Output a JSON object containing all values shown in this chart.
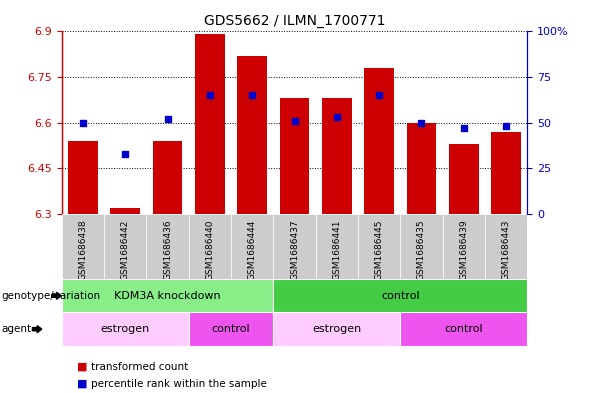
{
  "title": "GDS5662 / ILMN_1700771",
  "samples": [
    "GSM1686438",
    "GSM1686442",
    "GSM1686436",
    "GSM1686440",
    "GSM1686444",
    "GSM1686437",
    "GSM1686441",
    "GSM1686445",
    "GSM1686435",
    "GSM1686439",
    "GSM1686443"
  ],
  "transformed_counts": [
    6.54,
    6.32,
    6.54,
    6.89,
    6.82,
    6.68,
    6.68,
    6.78,
    6.6,
    6.53,
    6.57
  ],
  "percentile_ranks": [
    50,
    33,
    52,
    65,
    65,
    51,
    53,
    65,
    50,
    47,
    48
  ],
  "ylim_left": [
    6.3,
    6.9
  ],
  "ylim_right": [
    0,
    100
  ],
  "yticks_left": [
    6.3,
    6.45,
    6.6,
    6.75,
    6.9
  ],
  "yticks_right": [
    0,
    25,
    50,
    75,
    100
  ],
  "ytick_labels_left": [
    "6.3",
    "6.45",
    "6.6",
    "6.75",
    "6.9"
  ],
  "ytick_labels_right": [
    "0",
    "25",
    "50",
    "75",
    "100%"
  ],
  "bar_color": "#cc0000",
  "dot_color": "#0000cc",
  "bar_bottom": 6.3,
  "genotype_groups": [
    {
      "label": "KDM3A knockdown",
      "start": 0,
      "end": 5,
      "color": "#88ee88"
    },
    {
      "label": "control",
      "start": 5,
      "end": 11,
      "color": "#44cc44"
    }
  ],
  "agent_groups": [
    {
      "label": "estrogen",
      "start": 0,
      "end": 3,
      "color": "#ffccff"
    },
    {
      "label": "control",
      "start": 3,
      "end": 5,
      "color": "#ee55ee"
    },
    {
      "label": "estrogen",
      "start": 5,
      "end": 8,
      "color": "#ffccff"
    },
    {
      "label": "control",
      "start": 8,
      "end": 11,
      "color": "#ee55ee"
    }
  ],
  "genotype_label": "genotype/variation",
  "agent_label": "agent",
  "legend_items": [
    {
      "label": "transformed count",
      "color": "#cc0000"
    },
    {
      "label": "percentile rank within the sample",
      "color": "#0000cc"
    }
  ],
  "bg_color": "#ffffff",
  "xtick_bg": "#cccccc",
  "grid_color": "#000000"
}
